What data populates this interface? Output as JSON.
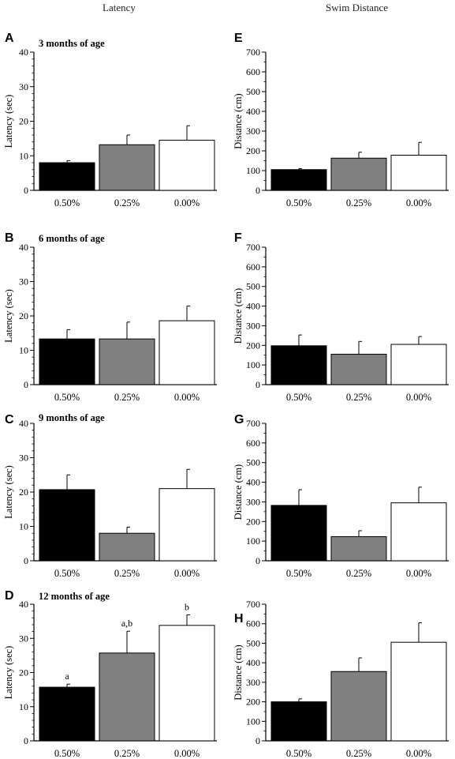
{
  "columns": {
    "left": "Latency",
    "right": "Swim Distance"
  },
  "chart_data": [
    {
      "panel": "A",
      "type": "bar",
      "title": "3 months of age",
      "ylabel": "Latency (sec)",
      "ylim": [
        0,
        40
      ],
      "yticks": [
        0,
        10,
        20,
        30,
        40
      ],
      "minor_step": 2,
      "categories": [
        "0.50%",
        "0.25%",
        "0.00%"
      ],
      "values": [
        8,
        13.2,
        14.5
      ],
      "errors": [
        0.6,
        2.8,
        4.2
      ],
      "colors": [
        "#000000",
        "#808080",
        "#ffffff"
      ],
      "sig_labels": [
        "",
        "",
        ""
      ]
    },
    {
      "panel": "B",
      "type": "bar",
      "title": "6 months of age",
      "ylabel": "Latency (sec)",
      "ylim": [
        0,
        40
      ],
      "yticks": [
        0,
        10,
        20,
        30,
        40
      ],
      "minor_step": 2,
      "categories": [
        "0.50%",
        "0.25%",
        "0.00%"
      ],
      "values": [
        13.3,
        13.3,
        18.6
      ],
      "errors": [
        2.7,
        4.9,
        4.3
      ],
      "colors": [
        "#000000",
        "#808080",
        "#ffffff"
      ],
      "sig_labels": [
        "",
        "",
        ""
      ]
    },
    {
      "panel": "C",
      "type": "bar",
      "title": "9 months of age",
      "ylabel": "Latency (sec)",
      "ylim": [
        0,
        40
      ],
      "yticks": [
        0,
        10,
        20,
        30,
        40
      ],
      "minor_step": 2,
      "categories": [
        "0.50%",
        "0.25%",
        "0.00%"
      ],
      "values": [
        20.7,
        8,
        21
      ],
      "errors": [
        4.3,
        1.8,
        5.6
      ],
      "colors": [
        "#000000",
        "#808080",
        "#ffffff"
      ],
      "sig_labels": [
        "",
        "",
        ""
      ]
    },
    {
      "panel": "D",
      "type": "bar",
      "title": "12 months of age",
      "ylabel": "Latency (sec)",
      "ylim": [
        0,
        40
      ],
      "yticks": [
        0,
        10,
        20,
        30,
        40
      ],
      "minor_step": 2,
      "categories": [
        "0.50%",
        "0.25%",
        "0.00%"
      ],
      "values": [
        15.7,
        25.7,
        33.8
      ],
      "errors": [
        0.9,
        6.4,
        3.1
      ],
      "colors": [
        "#000000",
        "#808080",
        "#ffffff"
      ],
      "sig_labels": [
        "a",
        "a,b",
        "b"
      ]
    },
    {
      "panel": "E",
      "type": "bar",
      "title": "",
      "ylabel": "Distance (cm)",
      "ylim": [
        0,
        700
      ],
      "yticks": [
        0,
        100,
        200,
        300,
        400,
        500,
        600,
        700
      ],
      "minor_step": 50,
      "categories": [
        "0.50%",
        "0.25%",
        "0.00%"
      ],
      "values": [
        105,
        163,
        178
      ],
      "errors": [
        5,
        30,
        65
      ],
      "colors": [
        "#000000",
        "#808080",
        "#ffffff"
      ],
      "sig_labels": [
        "",
        "",
        ""
      ]
    },
    {
      "panel": "F",
      "type": "bar",
      "title": "",
      "ylabel": "Distance (cm)",
      "ylim": [
        0,
        700
      ],
      "yticks": [
        0,
        100,
        200,
        300,
        400,
        500,
        600,
        700
      ],
      "minor_step": 50,
      "categories": [
        "0.50%",
        "0.25%",
        "0.00%"
      ],
      "values": [
        198,
        155,
        205
      ],
      "errors": [
        55,
        65,
        40
      ],
      "colors": [
        "#000000",
        "#808080",
        "#ffffff"
      ],
      "sig_labels": [
        "",
        "",
        ""
      ]
    },
    {
      "panel": "G",
      "type": "bar",
      "title": "",
      "ylabel": "Distance (cm)",
      "ylim": [
        0,
        700
      ],
      "yticks": [
        0,
        100,
        200,
        300,
        400,
        500,
        600,
        700
      ],
      "minor_step": 50,
      "categories": [
        "0.50%",
        "0.25%",
        "0.00%"
      ],
      "values": [
        282,
        123,
        295
      ],
      "errors": [
        80,
        30,
        80
      ],
      "colors": [
        "#000000",
        "#808080",
        "#ffffff"
      ],
      "sig_labels": [
        "",
        "",
        ""
      ]
    },
    {
      "panel": "H",
      "type": "bar",
      "title": "",
      "ylabel": "Distance (cm)",
      "ylim": [
        0,
        700
      ],
      "yticks": [
        0,
        100,
        200,
        300,
        400,
        500,
        600,
        700
      ],
      "minor_step": 50,
      "categories": [
        "0.50%",
        "0.25%",
        "0.00%"
      ],
      "values": [
        200,
        355,
        505
      ],
      "errors": [
        15,
        70,
        100
      ],
      "colors": [
        "#000000",
        "#808080",
        "#ffffff"
      ],
      "sig_labels": [
        "",
        "",
        ""
      ]
    }
  ]
}
